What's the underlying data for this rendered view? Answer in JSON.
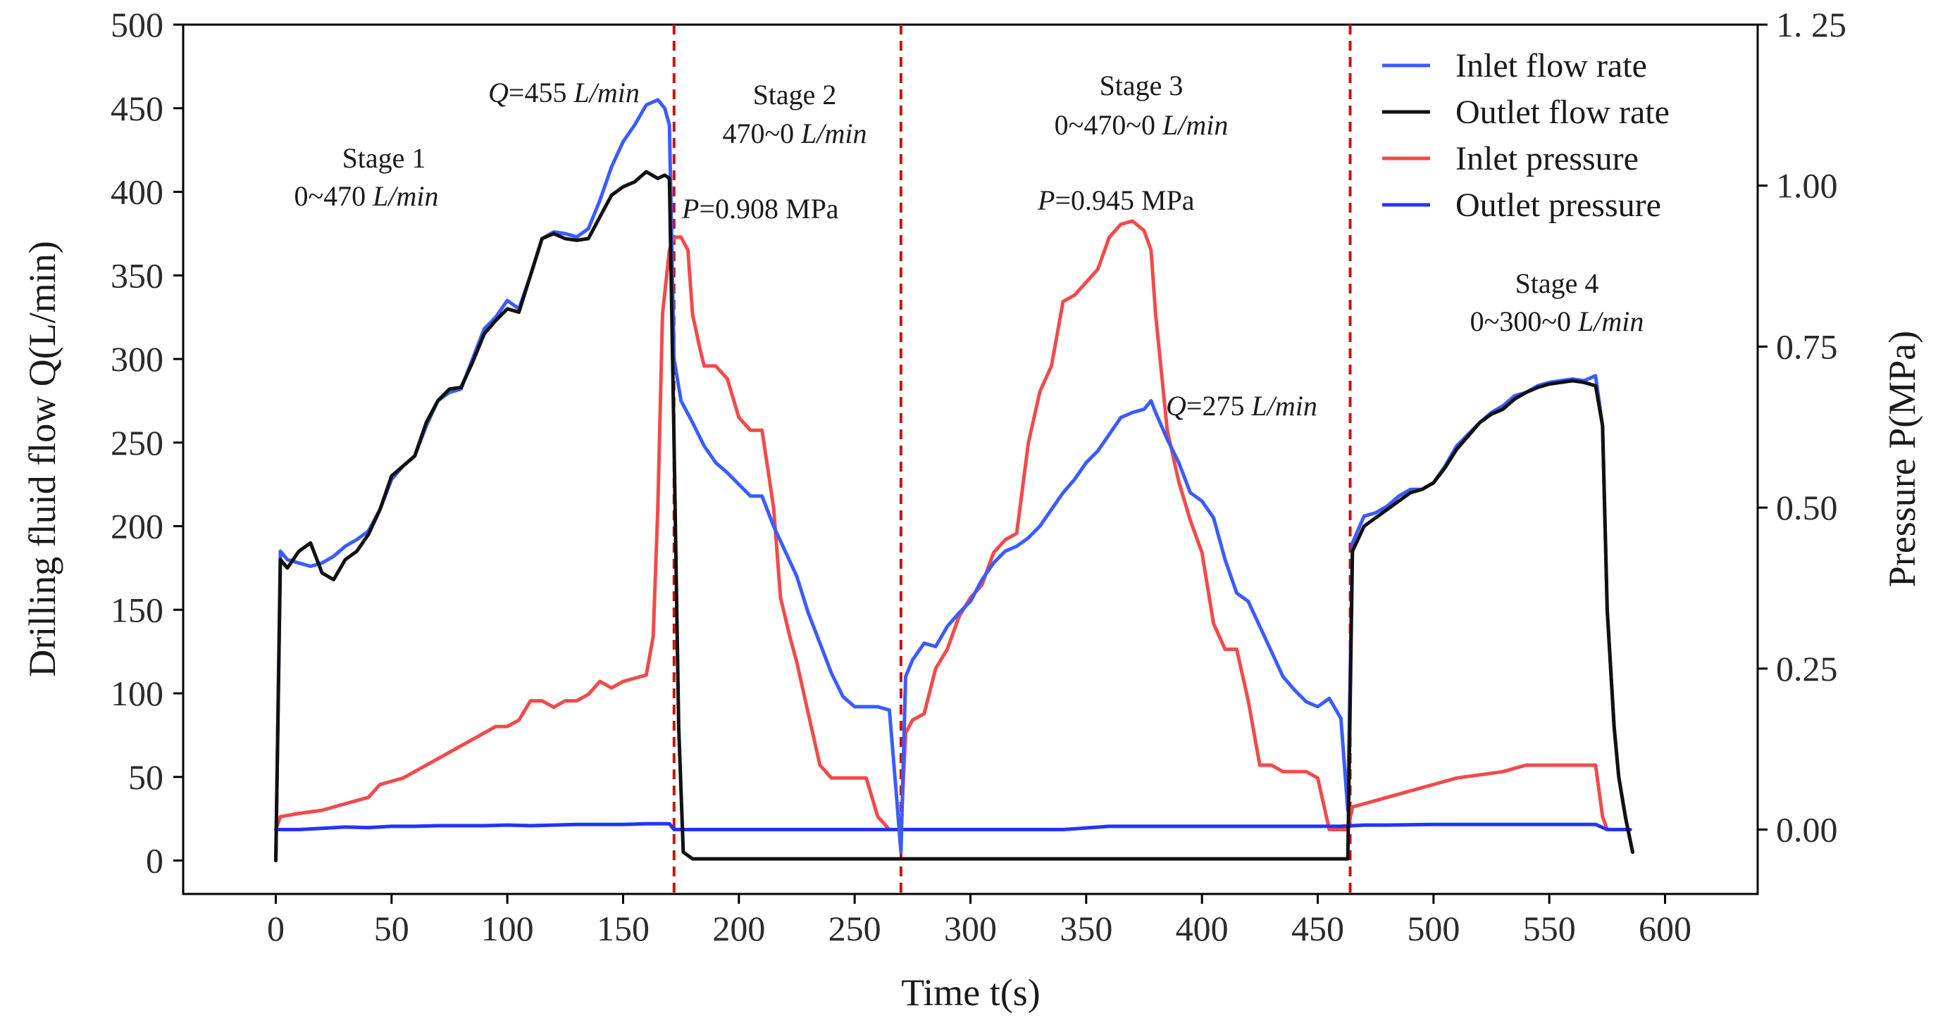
{
  "chart_data": {
    "type": "line",
    "xlabel": "Time t(s)",
    "ylabel_left": "Drilling fluid flow Q(L/min)",
    "ylabel_right": "Pressure  P(MPa)",
    "xlim": [
      -40,
      640
    ],
    "ylim_left": [
      -20,
      500
    ],
    "ylim_right": [
      -0.1,
      1.25
    ],
    "x_ticks": [
      "0",
      "50",
      "100",
      "150",
      "200",
      "250",
      "300",
      "350",
      "400",
      "450",
      "500",
      "550",
      "600"
    ],
    "y_ticks_left": [
      "0",
      "50",
      "100",
      "150",
      "200",
      "250",
      "300",
      "350",
      "400",
      "450",
      "500"
    ],
    "y_ticks_right": [
      "0.00",
      "0.25",
      "0.50",
      "0.75",
      "1.00",
      "1. 25"
    ],
    "grid": false,
    "legend_position": "top-right",
    "stage_dividers_x": [
      172,
      270,
      464
    ],
    "colors": {
      "inlet_flow": "#3a5cff",
      "outlet_flow": "#111111",
      "inlet_pressure": "#f24a4a",
      "outlet_pressure": "#2233ff",
      "divider": "#cc1111"
    },
    "series": [
      {
        "name": "Inlet flow rate",
        "axis": "left",
        "color": "#3a5cff",
        "x": [
          0,
          2,
          5,
          10,
          15,
          20,
          25,
          30,
          35,
          40,
          45,
          50,
          55,
          60,
          65,
          70,
          75,
          80,
          85,
          90,
          95,
          100,
          105,
          110,
          115,
          120,
          125,
          130,
          135,
          140,
          145,
          150,
          155,
          160,
          165,
          168,
          170,
          172,
          175,
          180,
          185,
          190,
          195,
          200,
          205,
          210,
          215,
          220,
          225,
          230,
          235,
          240,
          245,
          250,
          255,
          260,
          265,
          268,
          270,
          272,
          275,
          280,
          285,
          290,
          295,
          300,
          305,
          310,
          315,
          320,
          325,
          330,
          335,
          340,
          345,
          350,
          355,
          360,
          365,
          370,
          375,
          378,
          380,
          385,
          390,
          395,
          400,
          405,
          410,
          415,
          420,
          425,
          430,
          435,
          440,
          445,
          450,
          455,
          460,
          463,
          465,
          470,
          475,
          480,
          485,
          490,
          495,
          500,
          505,
          510,
          515,
          520,
          525,
          530,
          535,
          540,
          545,
          550,
          555,
          560,
          565,
          570,
          573,
          575,
          578,
          580,
          583,
          586
        ],
        "y": [
          0,
          185,
          180,
          178,
          176,
          178,
          182,
          188,
          192,
          197,
          210,
          228,
          236,
          242,
          260,
          275,
          280,
          282,
          300,
          318,
          325,
          335,
          330,
          350,
          372,
          376,
          375,
          373,
          378,
          395,
          415,
          430,
          440,
          452,
          455,
          450,
          440,
          300,
          275,
          262,
          248,
          238,
          232,
          225,
          218,
          218,
          200,
          185,
          170,
          148,
          130,
          112,
          98,
          92,
          92,
          92,
          90,
          40,
          5,
          110,
          120,
          130,
          128,
          140,
          148,
          155,
          168,
          178,
          185,
          188,
          193,
          200,
          210,
          220,
          228,
          238,
          245,
          255,
          265,
          268,
          270,
          275,
          268,
          252,
          238,
          220,
          215,
          205,
          180,
          160,
          155,
          140,
          125,
          110,
          102,
          95,
          92,
          97,
          85,
          30,
          190,
          206,
          208,
          212,
          218,
          222,
          222,
          226,
          236,
          248,
          255,
          262,
          268,
          272,
          278,
          280,
          284,
          286,
          287,
          288,
          287,
          290,
          260,
          150,
          80,
          50,
          25,
          5
        ]
      },
      {
        "name": "Outlet flow rate",
        "axis": "left",
        "color": "#111111",
        "x": [
          0,
          2,
          5,
          10,
          15,
          20,
          25,
          30,
          35,
          40,
          45,
          50,
          55,
          60,
          65,
          70,
          75,
          80,
          85,
          90,
          95,
          100,
          105,
          110,
          115,
          120,
          125,
          130,
          135,
          140,
          145,
          150,
          155,
          160,
          165,
          168,
          170,
          172,
          174,
          176,
          180,
          200,
          250,
          270,
          300,
          350,
          400,
          450,
          463,
          465,
          470,
          475,
          480,
          485,
          490,
          495,
          500,
          505,
          510,
          515,
          520,
          525,
          530,
          535,
          540,
          545,
          550,
          555,
          560,
          565,
          570,
          573,
          575,
          578,
          580,
          583,
          586
        ],
        "y": [
          0,
          180,
          175,
          185,
          190,
          172,
          168,
          180,
          185,
          195,
          210,
          230,
          236,
          242,
          262,
          275,
          282,
          283,
          298,
          315,
          323,
          330,
          328,
          350,
          372,
          375,
          372,
          371,
          372,
          385,
          398,
          403,
          406,
          412,
          408,
          410,
          408,
          250,
          80,
          5,
          1,
          1,
          1,
          1,
          1,
          1,
          1,
          1,
          1,
          185,
          200,
          205,
          210,
          215,
          220,
          222,
          226,
          235,
          246,
          254,
          262,
          267,
          270,
          276,
          280,
          283,
          285,
          286,
          287,
          286,
          284,
          260,
          150,
          80,
          50,
          25,
          5
        ]
      },
      {
        "name": "Inlet pressure",
        "axis": "right",
        "color": "#f24a4a",
        "x": [
          0,
          2,
          10,
          20,
          30,
          40,
          45,
          50,
          55,
          60,
          65,
          70,
          75,
          80,
          85,
          90,
          95,
          100,
          105,
          110,
          115,
          120,
          125,
          130,
          135,
          140,
          145,
          150,
          155,
          160,
          163,
          165,
          167,
          170,
          172,
          175,
          178,
          180,
          183,
          185,
          188,
          190,
          195,
          200,
          205,
          210,
          215,
          218,
          222,
          225,
          230,
          235,
          240,
          245,
          250,
          255,
          260,
          265,
          268,
          270,
          272,
          275,
          280,
          285,
          290,
          295,
          300,
          305,
          310,
          315,
          320,
          325,
          330,
          335,
          340,
          345,
          350,
          355,
          360,
          365,
          370,
          375,
          378,
          380,
          385,
          390,
          395,
          400,
          405,
          410,
          415,
          420,
          425,
          430,
          435,
          440,
          445,
          450,
          455,
          460,
          463,
          465,
          470,
          480,
          490,
          500,
          510,
          520,
          530,
          540,
          550,
          560,
          565,
          570,
          573,
          575,
          580,
          585
        ],
        "y": [
          0.0,
          0.02,
          0.025,
          0.03,
          0.04,
          0.05,
          0.07,
          0.075,
          0.08,
          0.09,
          0.1,
          0.11,
          0.12,
          0.13,
          0.14,
          0.15,
          0.16,
          0.16,
          0.17,
          0.2,
          0.2,
          0.19,
          0.2,
          0.2,
          0.21,
          0.23,
          0.22,
          0.23,
          0.235,
          0.24,
          0.3,
          0.5,
          0.8,
          0.9,
          0.92,
          0.92,
          0.9,
          0.8,
          0.75,
          0.72,
          0.72,
          0.72,
          0.7,
          0.64,
          0.62,
          0.62,
          0.5,
          0.36,
          0.3,
          0.26,
          0.18,
          0.1,
          0.08,
          0.08,
          0.08,
          0.08,
          0.02,
          0.0,
          0.0,
          0.0,
          0.15,
          0.17,
          0.18,
          0.25,
          0.28,
          0.33,
          0.36,
          0.38,
          0.43,
          0.45,
          0.46,
          0.6,
          0.68,
          0.72,
          0.82,
          0.83,
          0.85,
          0.87,
          0.92,
          0.94,
          0.945,
          0.93,
          0.9,
          0.8,
          0.62,
          0.54,
          0.48,
          0.43,
          0.32,
          0.28,
          0.28,
          0.2,
          0.1,
          0.1,
          0.09,
          0.09,
          0.09,
          0.08,
          0.0,
          0.0,
          0.0,
          0.035,
          0.04,
          0.05,
          0.06,
          0.07,
          0.08,
          0.085,
          0.09,
          0.1,
          0.1,
          0.1,
          0.1,
          0.1,
          0.02,
          0.0,
          0.0,
          0.0
        ]
      },
      {
        "name": "Outlet pressure",
        "axis": "right",
        "color": "#2233ff",
        "x": [
          0,
          10,
          20,
          30,
          40,
          50,
          60,
          70,
          80,
          90,
          100,
          110,
          120,
          130,
          140,
          150,
          160,
          165,
          170,
          172,
          175,
          180,
          200,
          220,
          240,
          260,
          270,
          280,
          300,
          320,
          340,
          360,
          380,
          400,
          420,
          440,
          460,
          470,
          480,
          500,
          520,
          540,
          560,
          570,
          575,
          580,
          585
        ],
        "y": [
          0.0,
          0.0,
          0.002,
          0.004,
          0.003,
          0.005,
          0.005,
          0.006,
          0.006,
          0.006,
          0.007,
          0.006,
          0.007,
          0.008,
          0.008,
          0.008,
          0.009,
          0.009,
          0.009,
          0.0,
          0.0,
          0.0,
          0.0,
          0.0,
          0.0,
          0.0,
          0.0,
          0.0,
          0.0,
          0.0,
          0.0,
          0.005,
          0.005,
          0.005,
          0.005,
          0.005,
          0.005,
          0.007,
          0.007,
          0.008,
          0.008,
          0.008,
          0.008,
          0.008,
          0.0,
          0.0,
          0.0
        ]
      }
    ],
    "annotations": {
      "stage1": {
        "title": "Stage 1",
        "range_prefix": "0~470 ",
        "unit": "L/min"
      },
      "stage2": {
        "title": "Stage 2",
        "range_prefix": "470~0 ",
        "unit": "L/min"
      },
      "stage3": {
        "title": "Stage 3",
        "range_prefix": "0~470~0 ",
        "unit": "L/min"
      },
      "stage4": {
        "title": "Stage 4",
        "range_prefix": "0~300~0 ",
        "unit": "L/min"
      },
      "q455": {
        "var": "Q",
        "value": "=455 ",
        "unit": "L/min"
      },
      "q275": {
        "var": "Q",
        "value": "=275 ",
        "unit": "L/min"
      },
      "p908": {
        "var": "P",
        "value": "=0.908 MPa"
      },
      "p945": {
        "var": "P",
        "value": "=0.945 MPa"
      }
    },
    "legend": {
      "items": [
        "Inlet flow rate",
        "Outlet flow rate",
        "Inlet pressure",
        "Outlet pressure"
      ]
    }
  }
}
